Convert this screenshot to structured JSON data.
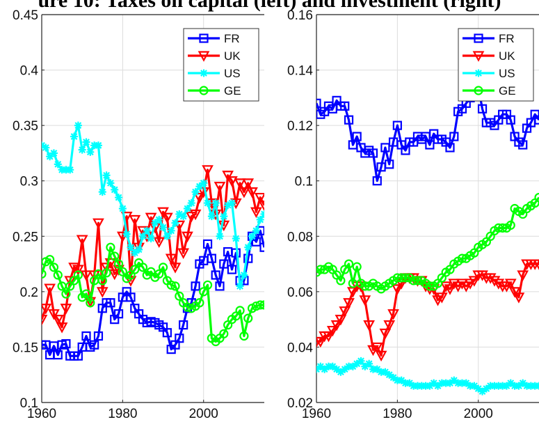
{
  "figure_title": "ure 10: Taxes on capital (left) and investment (right)",
  "chart_data": [
    {
      "type": "line",
      "title": "",
      "xlabel": "",
      "ylabel": "",
      "xlim": [
        1960,
        2015
      ],
      "ylim": [
        0.1,
        0.45
      ],
      "xticks": [
        1960,
        1980,
        2000
      ],
      "yticks": [
        0.1,
        0.15,
        0.2,
        0.25,
        0.3,
        0.35,
        0.4,
        0.45
      ],
      "grid": true,
      "legend_position": "top-right",
      "x": [
        1960,
        1961,
        1962,
        1963,
        1964,
        1965,
        1966,
        1967,
        1968,
        1969,
        1970,
        1971,
        1972,
        1973,
        1974,
        1975,
        1976,
        1977,
        1978,
        1979,
        1980,
        1981,
        1982,
        1983,
        1984,
        1985,
        1986,
        1987,
        1988,
        1989,
        1990,
        1991,
        1992,
        1993,
        1994,
        1995,
        1996,
        1997,
        1998,
        1999,
        2000,
        2001,
        2002,
        2003,
        2004,
        2005,
        2006,
        2007,
        2008,
        2009,
        2010,
        2011,
        2012,
        2013,
        2014,
        2015
      ],
      "series": [
        {
          "name": "FR",
          "color": "#0000ff",
          "marker": "square",
          "values": [
            0.152,
            0.152,
            0.143,
            0.151,
            0.143,
            0.152,
            0.153,
            0.142,
            0.142,
            0.142,
            0.15,
            0.16,
            0.15,
            0.152,
            0.16,
            0.185,
            0.19,
            0.19,
            0.175,
            0.18,
            0.195,
            0.2,
            0.195,
            0.185,
            0.18,
            0.175,
            0.172,
            0.173,
            0.172,
            0.17,
            0.168,
            0.163,
            0.148,
            0.152,
            0.158,
            0.17,
            0.185,
            0.19,
            0.205,
            0.225,
            0.228,
            0.243,
            0.23,
            0.215,
            0.205,
            0.225,
            0.236,
            0.22,
            0.235,
            0.21,
            0.21,
            0.23,
            0.25,
            0.245,
            0.255,
            0.24
          ]
        },
        {
          "name": "UK",
          "color": "#ff0000",
          "marker": "triangle-down",
          "values": [
            0.175,
            0.185,
            0.203,
            0.18,
            0.175,
            0.168,
            0.185,
            0.21,
            0.222,
            0.22,
            0.247,
            0.215,
            0.191,
            0.215,
            0.262,
            0.2,
            0.222,
            0.226,
            0.216,
            0.22,
            0.25,
            0.268,
            0.21,
            0.265,
            0.24,
            0.255,
            0.25,
            0.267,
            0.258,
            0.245,
            0.272,
            0.267,
            0.23,
            0.222,
            0.26,
            0.235,
            0.25,
            0.268,
            0.27,
            0.285,
            0.29,
            0.31,
            0.28,
            0.27,
            0.295,
            0.26,
            0.305,
            0.3,
            0.28,
            0.298,
            0.29,
            0.298,
            0.29,
            0.272,
            0.285,
            0.278
          ]
        },
        {
          "name": "US",
          "color": "#00ffff",
          "marker": "asterisk",
          "values": [
            0.332,
            0.33,
            0.322,
            0.325,
            0.315,
            0.31,
            0.31,
            0.31,
            0.34,
            0.35,
            0.328,
            0.335,
            0.326,
            0.332,
            0.332,
            0.29,
            0.305,
            0.298,
            0.292,
            0.285,
            0.275,
            0.252,
            0.24,
            0.235,
            0.238,
            0.25,
            0.255,
            0.248,
            0.262,
            0.265,
            0.258,
            0.25,
            0.255,
            0.262,
            0.27,
            0.268,
            0.275,
            0.28,
            0.29,
            0.295,
            0.298,
            0.28,
            0.268,
            0.28,
            0.25,
            0.268,
            0.278,
            0.28,
            0.248,
            0.205,
            0.215,
            0.24,
            0.25,
            0.255,
            0.265,
            0.27
          ]
        },
        {
          "name": "GE",
          "color": "#00ff00",
          "marker": "circle",
          "values": [
            0.216,
            0.227,
            0.229,
            0.222,
            0.215,
            0.205,
            0.198,
            0.205,
            0.21,
            0.215,
            0.195,
            0.198,
            0.19,
            0.21,
            0.216,
            0.21,
            0.217,
            0.24,
            0.232,
            0.225,
            0.218,
            0.212,
            0.215,
            0.22,
            0.226,
            0.222,
            0.215,
            0.218,
            0.213,
            0.216,
            0.222,
            0.21,
            0.206,
            0.205,
            0.196,
            0.19,
            0.186,
            0.185,
            0.187,
            0.19,
            0.2,
            0.206,
            0.158,
            0.155,
            0.158,
            0.162,
            0.17,
            0.175,
            0.178,
            0.183,
            0.16,
            0.176,
            0.185,
            0.187,
            0.188,
            0.188
          ]
        }
      ]
    },
    {
      "type": "line",
      "title": "",
      "xlabel": "",
      "ylabel": "",
      "xlim": [
        1960,
        2015
      ],
      "ylim": [
        0.02,
        0.16
      ],
      "xticks": [
        1960,
        1980,
        2000
      ],
      "yticks": [
        0.02,
        0.04,
        0.06,
        0.08,
        0.1,
        0.12,
        0.14,
        0.16
      ],
      "grid": true,
      "legend_position": "top-right",
      "x": [
        1960,
        1961,
        1962,
        1963,
        1964,
        1965,
        1966,
        1967,
        1968,
        1969,
        1970,
        1971,
        1972,
        1973,
        1974,
        1975,
        1976,
        1977,
        1978,
        1979,
        1980,
        1981,
        1982,
        1983,
        1984,
        1985,
        1986,
        1987,
        1988,
        1989,
        1990,
        1991,
        1992,
        1993,
        1994,
        1995,
        1996,
        1997,
        1998,
        1999,
        2000,
        2001,
        2002,
        2003,
        2004,
        2005,
        2006,
        2007,
        2008,
        2009,
        2010,
        2011,
        2012,
        2013,
        2014,
        2015
      ],
      "series": [
        {
          "name": "FR",
          "color": "#0000ff",
          "marker": "square",
          "values": [
            0.128,
            0.124,
            0.125,
            0.127,
            0.126,
            0.129,
            0.127,
            0.127,
            0.122,
            0.113,
            0.116,
            0.112,
            0.11,
            0.111,
            0.11,
            0.1,
            0.105,
            0.112,
            0.106,
            0.114,
            0.12,
            0.113,
            0.111,
            0.114,
            0.114,
            0.116,
            0.115,
            0.116,
            0.113,
            0.117,
            0.115,
            0.115,
            0.114,
            0.112,
            0.116,
            0.125,
            0.126,
            0.128,
            0.13,
            0.132,
            0.134,
            0.126,
            0.121,
            0.121,
            0.12,
            0.122,
            0.124,
            0.124,
            0.122,
            0.116,
            0.114,
            0.113,
            0.119,
            0.121,
            0.124,
            0.122
          ]
        },
        {
          "name": "UK",
          "color": "#ff0000",
          "marker": "triangle-down",
          "values": [
            0.042,
            0.042,
            0.044,
            0.044,
            0.046,
            0.048,
            0.05,
            0.053,
            0.056,
            0.06,
            0.062,
            0.062,
            0.057,
            0.048,
            0.039,
            0.04,
            0.037,
            0.045,
            0.048,
            0.052,
            0.061,
            0.063,
            0.065,
            0.065,
            0.065,
            0.064,
            0.064,
            0.062,
            0.061,
            0.061,
            0.057,
            0.058,
            0.062,
            0.061,
            0.063,
            0.062,
            0.063,
            0.062,
            0.063,
            0.064,
            0.066,
            0.066,
            0.065,
            0.065,
            0.064,
            0.063,
            0.062,
            0.062,
            0.063,
            0.06,
            0.058,
            0.066,
            0.07,
            0.07,
            0.07,
            0.07
          ]
        },
        {
          "name": "US",
          "color": "#00ffff",
          "marker": "asterisk",
          "values": [
            0.032,
            0.033,
            0.032,
            0.033,
            0.033,
            0.032,
            0.031,
            0.032,
            0.033,
            0.033,
            0.034,
            0.035,
            0.033,
            0.034,
            0.032,
            0.032,
            0.031,
            0.031,
            0.03,
            0.029,
            0.028,
            0.028,
            0.027,
            0.027,
            0.026,
            0.026,
            0.026,
            0.026,
            0.026,
            0.027,
            0.026,
            0.027,
            0.027,
            0.027,
            0.028,
            0.027,
            0.027,
            0.027,
            0.026,
            0.026,
            0.025,
            0.024,
            0.025,
            0.026,
            0.026,
            0.026,
            0.026,
            0.026,
            0.027,
            0.026,
            0.026,
            0.027,
            0.026,
            0.026,
            0.026,
            0.026
          ]
        },
        {
          "name": "GE",
          "color": "#00ff00",
          "marker": "circle",
          "values": [
            0.067,
            0.068,
            0.068,
            0.069,
            0.068,
            0.066,
            0.064,
            0.068,
            0.07,
            0.063,
            0.069,
            0.063,
            0.062,
            0.062,
            0.063,
            0.062,
            0.061,
            0.062,
            0.063,
            0.064,
            0.065,
            0.065,
            0.065,
            0.065,
            0.064,
            0.064,
            0.064,
            0.063,
            0.062,
            0.062,
            0.063,
            0.065,
            0.067,
            0.068,
            0.07,
            0.071,
            0.072,
            0.072,
            0.073,
            0.074,
            0.076,
            0.077,
            0.078,
            0.08,
            0.082,
            0.083,
            0.083,
            0.083,
            0.084,
            0.09,
            0.089,
            0.088,
            0.09,
            0.091,
            0.092,
            0.094
          ]
        }
      ]
    }
  ]
}
